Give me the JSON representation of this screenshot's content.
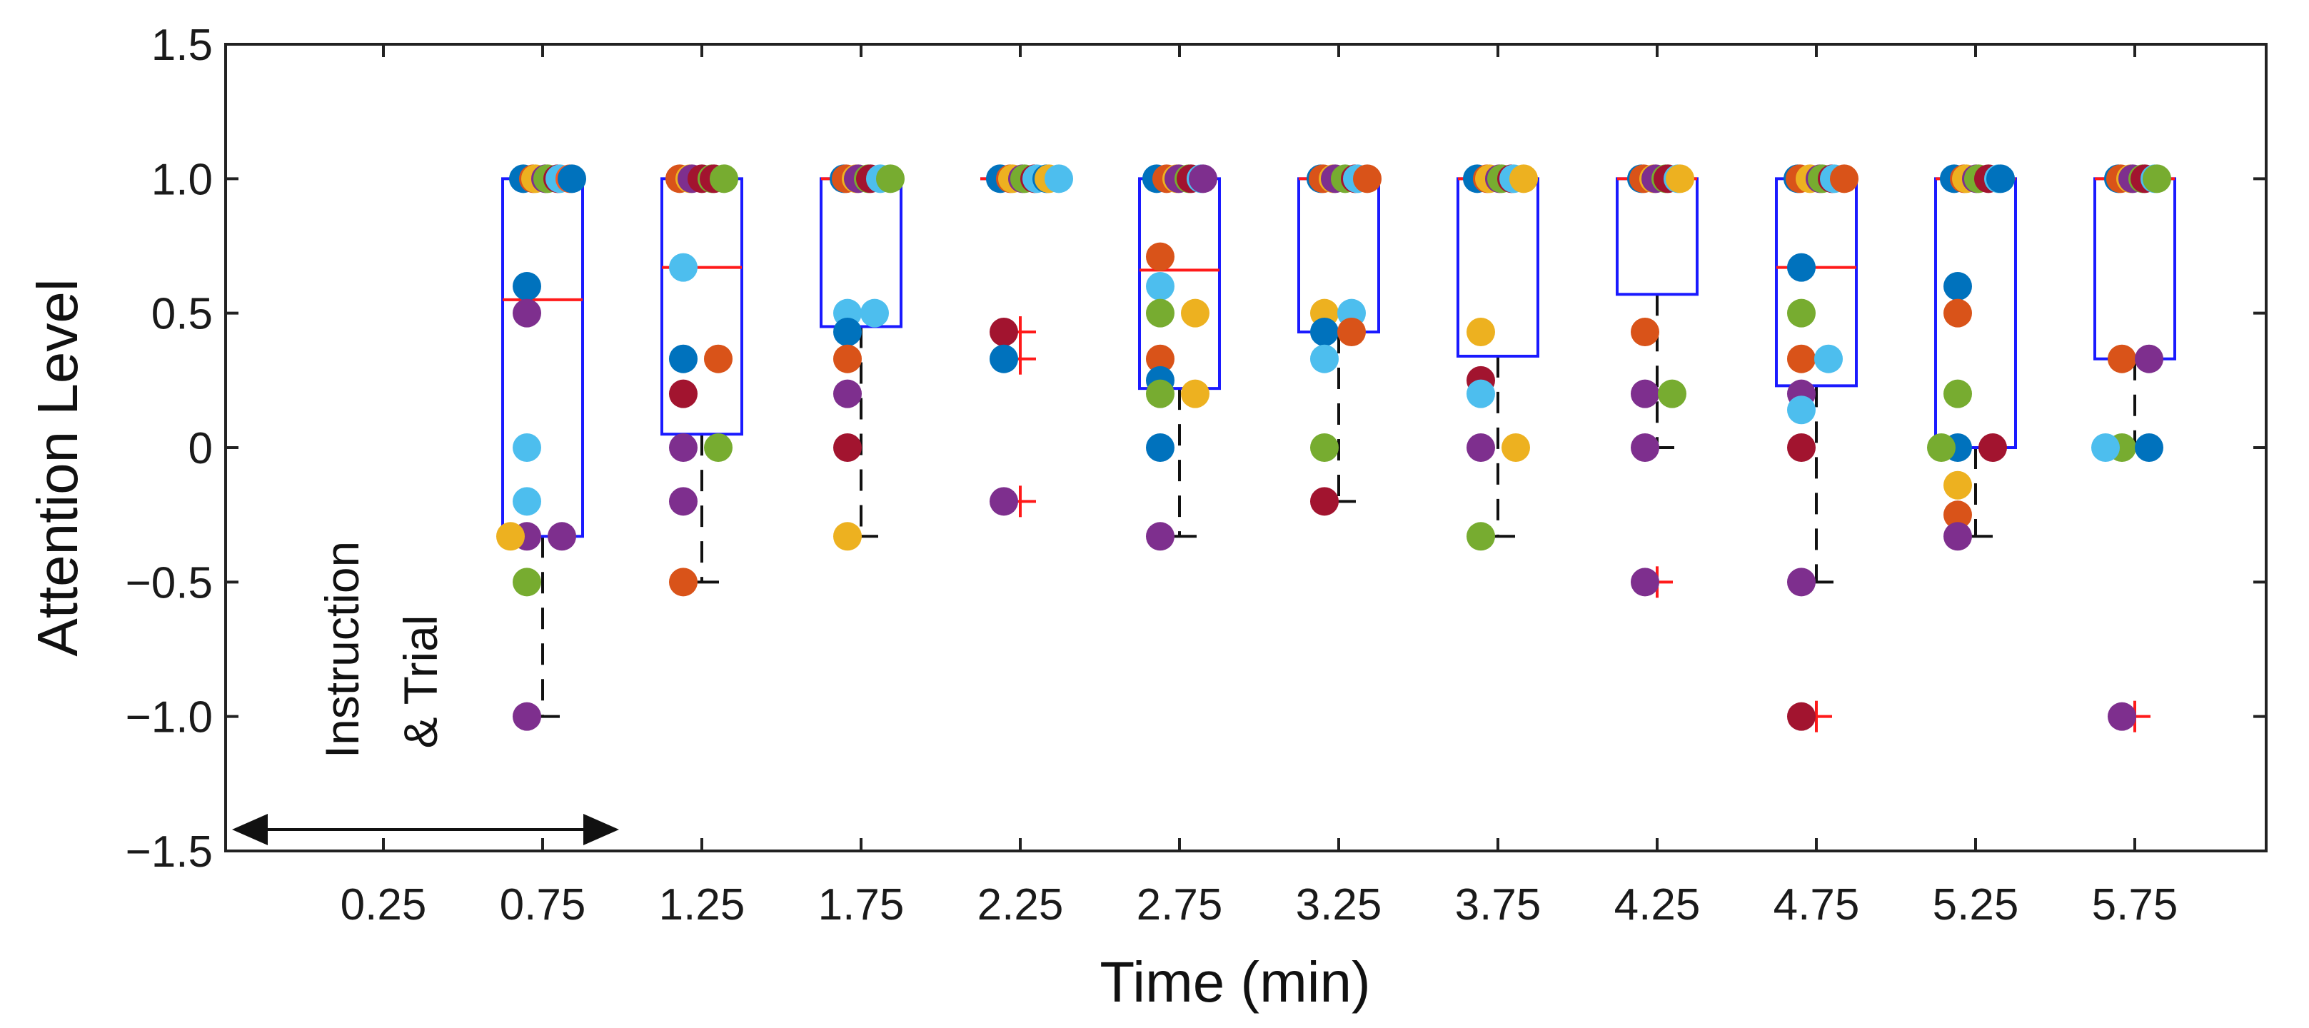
{
  "chart_data": {
    "type": "box-strip",
    "xlabel": "Time (min)",
    "ylabel": "Attention Level",
    "ylim": [
      -1.5,
      1.5
    ],
    "yticks": [
      "1.5",
      "1.0",
      "0.5",
      "0",
      "−0.5",
      "−1.0",
      "−1.5"
    ],
    "ytick_values": [
      1.5,
      1.0,
      0.5,
      0,
      -0.5,
      -1.0,
      -1.5
    ],
    "categories": [
      "0.25",
      "0.75",
      "1.25",
      "1.75",
      "2.25",
      "2.75",
      "3.25",
      "3.75",
      "4.25",
      "4.75",
      "5.25",
      "5.75"
    ],
    "annotation": {
      "line1": "Instruction",
      "line2": "& Trial",
      "range": [
        "0.0",
        "1.0"
      ]
    },
    "colors": {
      "box": "#1a1aff",
      "median": "#ff1a1a",
      "whisker": "#111111",
      "outlier": "#ff1a1a",
      "participants": [
        "#0072BD",
        "#D95319",
        "#EDB120",
        "#7E2F8E",
        "#77AC30",
        "#4DBEEE",
        "#A2142F",
        "#FF5A1F",
        "#12A3E8",
        "#FFB000"
      ]
    },
    "boxes": [
      {
        "x": 0.75,
        "q1": -0.33,
        "median": 0.55,
        "q3": 1.0,
        "whisker_low": -1.0,
        "whisker_high": 1.0,
        "outliers": []
      },
      {
        "x": 1.25,
        "q1": 0.05,
        "median": 0.67,
        "q3": 1.0,
        "whisker_low": -0.5,
        "whisker_high": 1.0,
        "outliers": []
      },
      {
        "x": 1.75,
        "q1": 0.45,
        "median": 1.0,
        "q3": 1.0,
        "whisker_low": -0.33,
        "whisker_high": 1.0,
        "outliers": []
      },
      {
        "x": 2.25,
        "q1": 1.0,
        "median": 1.0,
        "q3": 1.0,
        "whisker_low": 1.0,
        "whisker_high": 1.0,
        "outliers": [
          0.43,
          0.33,
          -0.2
        ]
      },
      {
        "x": 2.75,
        "q1": 0.22,
        "median": 0.66,
        "q3": 1.0,
        "whisker_low": -0.33,
        "whisker_high": 1.0,
        "outliers": []
      },
      {
        "x": 3.25,
        "q1": 0.43,
        "median": 1.0,
        "q3": 1.0,
        "whisker_low": -0.2,
        "whisker_high": 1.0,
        "outliers": []
      },
      {
        "x": 3.75,
        "q1": 0.34,
        "median": 1.0,
        "q3": 1.0,
        "whisker_low": -0.33,
        "whisker_high": 1.0,
        "outliers": []
      },
      {
        "x": 4.25,
        "q1": 0.57,
        "median": 1.0,
        "q3": 1.0,
        "whisker_low": 0.0,
        "whisker_high": 1.0,
        "outliers": [
          -0.5
        ]
      },
      {
        "x": 4.75,
        "q1": 0.23,
        "median": 0.67,
        "q3": 1.0,
        "whisker_low": -0.5,
        "whisker_high": 1.0,
        "outliers": [
          -1.0
        ]
      },
      {
        "x": 5.25,
        "q1": 0.0,
        "median": 1.0,
        "q3": 1.0,
        "whisker_low": -0.33,
        "whisker_high": 1.0,
        "outliers": []
      },
      {
        "x": 5.75,
        "q1": 0.33,
        "median": 1.0,
        "q3": 1.0,
        "whisker_low": 0.0,
        "whisker_high": 1.0,
        "outliers": [
          -1.0
        ]
      }
    ],
    "points": [
      [
        [
          1.0,
          0
        ],
        [
          1.0,
          1
        ],
        [
          1.0,
          2
        ],
        [
          1.0,
          3
        ],
        [
          1.0,
          4
        ],
        [
          1.0,
          6
        ],
        [
          1.0,
          5
        ],
        [
          1.0,
          7
        ],
        [
          1.0,
          0
        ],
        [
          0.6,
          0
        ],
        [
          0.5,
          3
        ],
        [
          0.0,
          5
        ],
        [
          -0.2,
          5
        ],
        [
          -0.33,
          3
        ],
        [
          -0.33,
          3
        ],
        [
          -0.33,
          2
        ],
        [
          -0.5,
          4
        ],
        [
          -1.0,
          3
        ]
      ],
      [
        [
          1.0,
          1
        ],
        [
          1.0,
          2
        ],
        [
          1.0,
          3
        ],
        [
          1.0,
          6
        ],
        [
          1.0,
          4
        ],
        [
          1.0,
          6
        ],
        [
          1.0,
          4
        ],
        [
          0.67,
          5
        ],
        [
          0.33,
          0
        ],
        [
          0.33,
          1
        ],
        [
          0.2,
          6
        ],
        [
          0.0,
          3
        ],
        [
          0.0,
          4
        ],
        [
          -0.2,
          3
        ],
        [
          -0.5,
          1
        ]
      ],
      [
        [
          1.0,
          0
        ],
        [
          1.0,
          1
        ],
        [
          1.0,
          2
        ],
        [
          1.0,
          3
        ],
        [
          1.0,
          4
        ],
        [
          1.0,
          6
        ],
        [
          1.0,
          5
        ],
        [
          1.0,
          4
        ],
        [
          0.5,
          5
        ],
        [
          0.5,
          5
        ],
        [
          0.43,
          0
        ],
        [
          0.33,
          1
        ],
        [
          0.2,
          3
        ],
        [
          0.0,
          6
        ],
        [
          -0.33,
          2
        ]
      ],
      [
        [
          1.0,
          0
        ],
        [
          1.0,
          1
        ],
        [
          1.0,
          2
        ],
        [
          1.0,
          3
        ],
        [
          1.0,
          4
        ],
        [
          1.0,
          6
        ],
        [
          1.0,
          5
        ],
        [
          1.0,
          0
        ],
        [
          1.0,
          2
        ],
        [
          1.0,
          5
        ],
        [
          0.43,
          6
        ],
        [
          0.33,
          0
        ],
        [
          -0.2,
          3
        ]
      ],
      [
        [
          1.0,
          0
        ],
        [
          1.0,
          1
        ],
        [
          1.0,
          2
        ],
        [
          1.0,
          3
        ],
        [
          1.0,
          4
        ],
        [
          1.0,
          6
        ],
        [
          1.0,
          5
        ],
        [
          1.0,
          3
        ],
        [
          0.71,
          1
        ],
        [
          0.6,
          5
        ],
        [
          0.5,
          4
        ],
        [
          0.5,
          2
        ],
        [
          0.33,
          1
        ],
        [
          0.25,
          0
        ],
        [
          0.2,
          4
        ],
        [
          0.2,
          2
        ],
        [
          0.0,
          0
        ],
        [
          -0.33,
          3
        ]
      ],
      [
        [
          1.0,
          0
        ],
        [
          1.0,
          1
        ],
        [
          1.0,
          2
        ],
        [
          1.0,
          3
        ],
        [
          1.0,
          4
        ],
        [
          1.0,
          6
        ],
        [
          1.0,
          5
        ],
        [
          1.0,
          1
        ],
        [
          0.5,
          2
        ],
        [
          0.5,
          5
        ],
        [
          0.43,
          0
        ],
        [
          0.43,
          1
        ],
        [
          0.33,
          5
        ],
        [
          0.0,
          4
        ],
        [
          -0.2,
          6
        ]
      ],
      [
        [
          1.0,
          0
        ],
        [
          1.0,
          1
        ],
        [
          1.0,
          2
        ],
        [
          1.0,
          3
        ],
        [
          1.0,
          4
        ],
        [
          1.0,
          6
        ],
        [
          1.0,
          5
        ],
        [
          1.0,
          2
        ],
        [
          0.43,
          2
        ],
        [
          0.25,
          6
        ],
        [
          0.2,
          5
        ],
        [
          0.0,
          3
        ],
        [
          0.0,
          2
        ],
        [
          -0.33,
          4
        ]
      ],
      [
        [
          1.0,
          0
        ],
        [
          1.0,
          1
        ],
        [
          1.0,
          2
        ],
        [
          1.0,
          3
        ],
        [
          1.0,
          4
        ],
        [
          1.0,
          6
        ],
        [
          1.0,
          5
        ],
        [
          1.0,
          2
        ],
        [
          0.43,
          1
        ],
        [
          0.2,
          3
        ],
        [
          0.2,
          4
        ],
        [
          0.0,
          3
        ],
        [
          -0.5,
          3
        ]
      ],
      [
        [
          1.0,
          0
        ],
        [
          1.0,
          1
        ],
        [
          1.0,
          2
        ],
        [
          1.0,
          3
        ],
        [
          1.0,
          4
        ],
        [
          1.0,
          6
        ],
        [
          1.0,
          5
        ],
        [
          1.0,
          1
        ],
        [
          0.67,
          0
        ],
        [
          0.5,
          4
        ],
        [
          0.33,
          1
        ],
        [
          0.33,
          5
        ],
        [
          0.2,
          3
        ],
        [
          0.14,
          5
        ],
        [
          0.0,
          6
        ],
        [
          -0.5,
          3
        ],
        [
          -1.0,
          6
        ]
      ],
      [
        [
          1.0,
          0
        ],
        [
          1.0,
          1
        ],
        [
          1.0,
          2
        ],
        [
          1.0,
          3
        ],
        [
          1.0,
          4
        ],
        [
          1.0,
          6
        ],
        [
          1.0,
          5
        ],
        [
          1.0,
          0
        ],
        [
          0.6,
          0
        ],
        [
          0.5,
          1
        ],
        [
          0.2,
          4
        ],
        [
          0.0,
          0
        ],
        [
          0.0,
          6
        ],
        [
          0.0,
          4
        ],
        [
          -0.14,
          2
        ],
        [
          -0.25,
          1
        ],
        [
          -0.33,
          3
        ]
      ],
      [
        [
          1.0,
          0
        ],
        [
          1.0,
          1
        ],
        [
          1.0,
          2
        ],
        [
          1.0,
          3
        ],
        [
          1.0,
          4
        ],
        [
          1.0,
          6
        ],
        [
          1.0,
          5
        ],
        [
          1.0,
          4
        ],
        [
          0.33,
          1
        ],
        [
          0.33,
          3
        ],
        [
          0.0,
          4
        ],
        [
          0.0,
          0
        ],
        [
          0.0,
          5
        ],
        [
          -1.0,
          3
        ]
      ]
    ]
  }
}
